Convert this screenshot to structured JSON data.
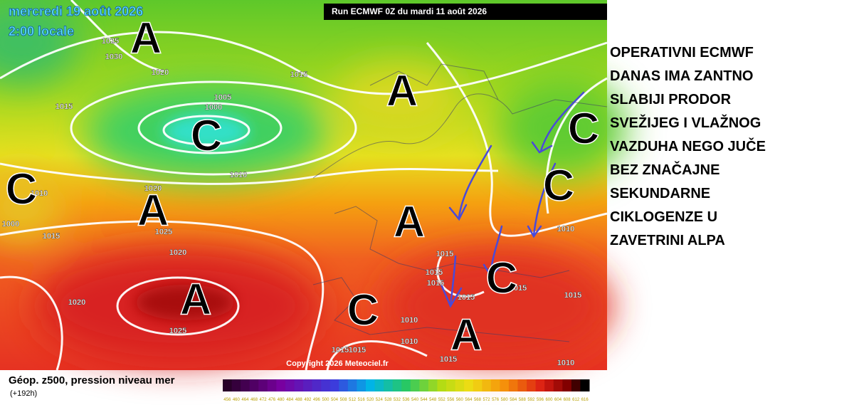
{
  "header": {
    "date": "mercredi 19 août 2026",
    "time": "2:00 locale",
    "run": "Run ECMWF 0Z du mardi 11 août 2026"
  },
  "map": {
    "centers": [
      "A",
      "A",
      "C",
      "C",
      "A",
      "A",
      "A",
      "C",
      "C",
      "A",
      "C",
      "C"
    ],
    "isobar_labels": [
      1025,
      1030,
      1020,
      1015,
      1015,
      1005,
      1000,
      1010,
      1020,
      1010,
      1015,
      1000,
      1025,
      1020,
      1020,
      1025,
      1015,
      1015,
      1015,
      1015,
      1010,
      1010,
      1010,
      1015,
      1015,
      1015,
      1015,
      1010,
      1015
    ],
    "copyright": "Copyright 2026 Meteociel.fr"
  },
  "annotation": {
    "lines": [
      "OPERATIVNI ECMWF",
      "DANAS IMA ZANTNO",
      "SLABIJI PRODOR",
      "SVEŽIJEG I VLAŽNOG",
      "VAZDUHA NEGO JUČE",
      "BEZ ZNAČAJNE",
      "SEKUNDARNE",
      "CIKLOGENZE U",
      "ZAVETRINI ALPA"
    ]
  },
  "footer": {
    "title": "Géop. z500, pression niveau mer",
    "lead": "(+192h)",
    "scale": [
      456,
      460,
      464,
      468,
      472,
      476,
      480,
      484,
      488,
      492,
      496,
      500,
      504,
      508,
      512,
      516,
      520,
      524,
      528,
      532,
      536,
      540,
      544,
      548,
      552,
      556,
      560,
      564,
      568,
      572,
      576,
      580,
      584,
      588,
      592,
      596,
      600,
      604,
      608,
      612,
      616
    ]
  }
}
